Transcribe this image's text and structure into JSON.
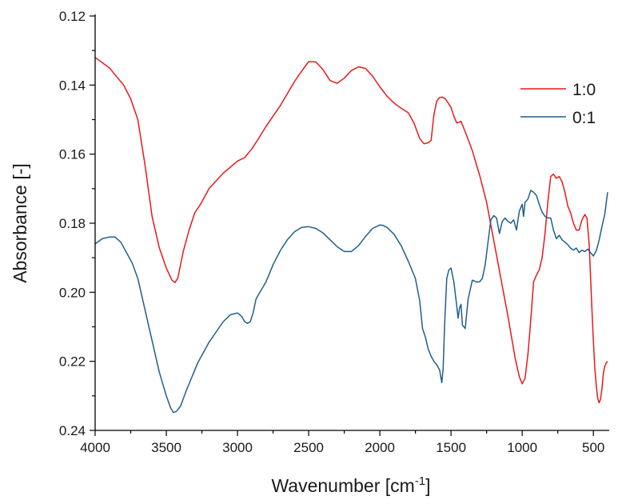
{
  "chart_data": {
    "type": "line",
    "xlabel": "Wavenumber [cm",
    "xlabel_sup": "-1",
    "xlabel_suffix": "]",
    "ylabel": "Absorbance [-]",
    "xlim": [
      4000,
      400
    ],
    "ylim": [
      0.12,
      0.24
    ],
    "y_inverted": true,
    "x_ticks": [
      4000,
      3500,
      3000,
      2500,
      2000,
      1500,
      1000,
      500
    ],
    "x_tick_labels": [
      "4000",
      "3500",
      "3000",
      "2500",
      "2000",
      "1500",
      "1000",
      "500"
    ],
    "y_ticks": [
      0.12,
      0.14,
      0.16,
      0.18,
      0.2,
      0.22,
      0.24
    ],
    "y_tick_labels": [
      "0.12",
      "0.14",
      "0.16",
      "0.18",
      "0.20",
      "0.22",
      "0.24"
    ],
    "grid": false,
    "legend_position": "top-right",
    "series": [
      {
        "name": "1:0",
        "color": "#e8191b",
        "x": [
          4000,
          3900,
          3800,
          3750,
          3700,
          3650,
          3600,
          3550,
          3500,
          3460,
          3440,
          3420,
          3380,
          3340,
          3300,
          3260,
          3200,
          3100,
          3000,
          2950,
          2900,
          2860,
          2800,
          2700,
          2600,
          2550,
          2500,
          2450,
          2400,
          2350,
          2300,
          2250,
          2200,
          2150,
          2100,
          2050,
          2000,
          1950,
          1900,
          1850,
          1800,
          1760,
          1720,
          1690,
          1660,
          1640,
          1620,
          1600,
          1580,
          1560,
          1540,
          1520,
          1500,
          1480,
          1460,
          1430,
          1400,
          1350,
          1300,
          1250,
          1200,
          1150,
          1100,
          1050,
          1020,
          1000,
          980,
          960,
          940,
          920,
          900,
          880,
          860,
          840,
          820,
          800,
          780,
          760,
          740,
          720,
          700,
          680,
          660,
          640,
          620,
          600,
          580,
          560,
          545,
          530,
          520,
          510,
          500,
          490,
          480,
          470,
          460,
          450,
          440,
          430,
          420,
          410,
          400
        ],
        "y": [
          0.132,
          0.135,
          0.14,
          0.144,
          0.15,
          0.163,
          0.178,
          0.187,
          0.193,
          0.1965,
          0.1972,
          0.196,
          0.188,
          0.182,
          0.177,
          0.1745,
          0.17,
          0.1655,
          0.162,
          0.161,
          0.1585,
          0.156,
          0.152,
          0.146,
          0.139,
          0.136,
          0.1332,
          0.1333,
          0.1355,
          0.1387,
          0.1395,
          0.138,
          0.1358,
          0.1347,
          0.1352,
          0.1375,
          0.1405,
          0.1432,
          0.1452,
          0.1467,
          0.148,
          0.151,
          0.1555,
          0.157,
          0.1567,
          0.156,
          0.1485,
          0.1446,
          0.1436,
          0.1435,
          0.144,
          0.1452,
          0.1465,
          0.149,
          0.151,
          0.1505,
          0.1535,
          0.159,
          0.166,
          0.174,
          0.185,
          0.196,
          0.207,
          0.219,
          0.2245,
          0.2265,
          0.225,
          0.218,
          0.208,
          0.197,
          0.195,
          0.1935,
          0.19,
          0.183,
          0.174,
          0.1665,
          0.1658,
          0.167,
          0.1665,
          0.168,
          0.171,
          0.175,
          0.177,
          0.18,
          0.182,
          0.182,
          0.179,
          0.1775,
          0.1785,
          0.186,
          0.195,
          0.205,
          0.214,
          0.222,
          0.227,
          0.2305,
          0.232,
          0.231,
          0.228,
          0.2235,
          0.2215,
          0.2205,
          0.22
        ]
      },
      {
        "name": "0:1",
        "color": "#1f5f8b",
        "x": [
          4000,
          3950,
          3900,
          3860,
          3820,
          3780,
          3740,
          3700,
          3650,
          3600,
          3550,
          3500,
          3470,
          3450,
          3430,
          3400,
          3360,
          3320,
          3280,
          3240,
          3200,
          3150,
          3100,
          3050,
          3000,
          2970,
          2950,
          2930,
          2910,
          2890,
          2870,
          2850,
          2800,
          2750,
          2700,
          2650,
          2600,
          2550,
          2500,
          2450,
          2400,
          2350,
          2300,
          2250,
          2200,
          2150,
          2100,
          2050,
          2000,
          1980,
          1950,
          1900,
          1850,
          1800,
          1750,
          1720,
          1700,
          1680,
          1660,
          1640,
          1620,
          1600,
          1580,
          1565,
          1555,
          1545,
          1530,
          1515,
          1500,
          1480,
          1460,
          1450,
          1440,
          1430,
          1420,
          1400,
          1380,
          1350,
          1320,
          1300,
          1280,
          1260,
          1240,
          1220,
          1200,
          1180,
          1160,
          1140,
          1120,
          1100,
          1080,
          1060,
          1040,
          1020,
          1000,
          990,
          980,
          960,
          940,
          920,
          900,
          880,
          860,
          840,
          820,
          800,
          780,
          760,
          740,
          720,
          700,
          680,
          660,
          640,
          620,
          600,
          580,
          560,
          540,
          520,
          500,
          480,
          460,
          440,
          420,
          400
        ],
        "y": [
          0.186,
          0.1845,
          0.184,
          0.184,
          0.1855,
          0.1885,
          0.1915,
          0.196,
          0.205,
          0.214,
          0.223,
          0.23,
          0.2335,
          0.2348,
          0.2345,
          0.233,
          0.2285,
          0.2245,
          0.2205,
          0.2175,
          0.2145,
          0.2115,
          0.2085,
          0.2065,
          0.206,
          0.207,
          0.2085,
          0.209,
          0.2085,
          0.206,
          0.202,
          0.2005,
          0.197,
          0.192,
          0.188,
          0.1848,
          0.1825,
          0.1812,
          0.181,
          0.1815,
          0.1828,
          0.1848,
          0.1868,
          0.1882,
          0.1882,
          0.1865,
          0.1838,
          0.1815,
          0.1805,
          0.1806,
          0.1812,
          0.1832,
          0.1865,
          0.191,
          0.196,
          0.2025,
          0.2105,
          0.213,
          0.2165,
          0.2185,
          0.22,
          0.221,
          0.2225,
          0.2262,
          0.222,
          0.2095,
          0.196,
          0.1935,
          0.193,
          0.197,
          0.204,
          0.2075,
          0.2045,
          0.2035,
          0.2095,
          0.2105,
          0.202,
          0.1965,
          0.197,
          0.197,
          0.196,
          0.192,
          0.1855,
          0.179,
          0.1778,
          0.1785,
          0.183,
          0.1795,
          0.1785,
          0.1795,
          0.18,
          0.179,
          0.182,
          0.1765,
          0.1745,
          0.178,
          0.174,
          0.173,
          0.1705,
          0.171,
          0.172,
          0.1745,
          0.1768,
          0.178,
          0.1785,
          0.1785,
          0.182,
          0.1845,
          0.1835,
          0.1848,
          0.1855,
          0.1862,
          0.1872,
          0.1878,
          0.1872,
          0.1885,
          0.1878,
          0.1882,
          0.1875,
          0.1885,
          0.1895,
          0.188,
          0.185,
          0.181,
          0.1775,
          0.171
        ]
      }
    ]
  }
}
